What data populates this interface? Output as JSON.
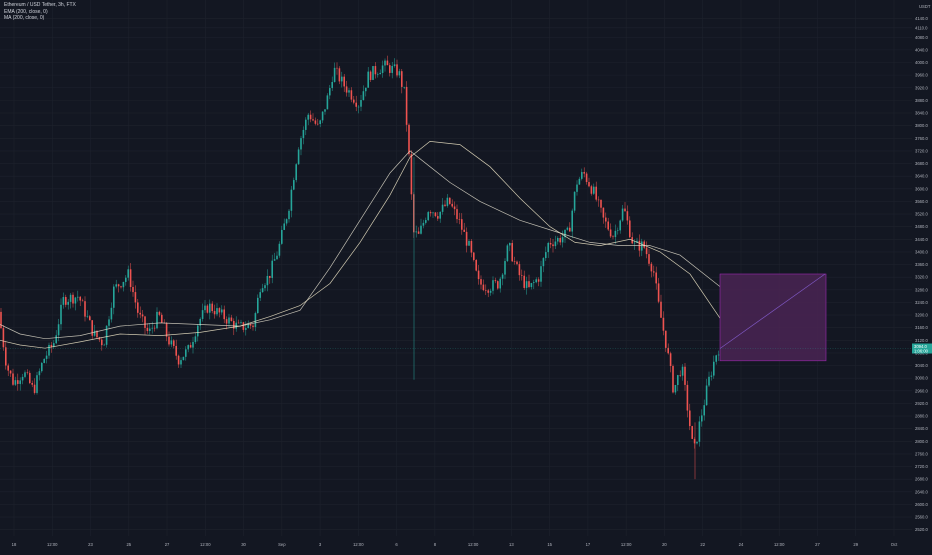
{
  "header": {
    "symbol_line": "Ethereum / USD Tether, 3h, FTX",
    "indicator_1": "EMA (200, close, 0)",
    "indicator_2": "MA (200, close, 0)"
  },
  "axis": {
    "unit": "USDT",
    "y_ticks": [
      "4140.0",
      "4110.0",
      "4080.0",
      "4040.0",
      "4000.0",
      "3960.0",
      "3920.0",
      "3880.0",
      "3840.0",
      "3800.0",
      "3760.0",
      "3720.0",
      "3680.0",
      "3640.0",
      "3600.0",
      "3560.0",
      "3520.0",
      "3480.0",
      "3440.0",
      "3400.0",
      "3360.0",
      "3320.0",
      "3280.0",
      "3240.0",
      "3200.0",
      "3160.0",
      "3120.0",
      "3080.0",
      "3040.0",
      "3000.0",
      "2960.0",
      "2920.0",
      "2880.0",
      "2840.0",
      "2800.0",
      "2760.0",
      "2720.0",
      "2680.0",
      "2640.0",
      "2600.0",
      "2560.0",
      "2520.0"
    ],
    "x_ticks": [
      "18",
      "12:00",
      "23",
      "25",
      "27",
      "12:00",
      "30",
      "Sep",
      "3",
      "12:00",
      "6",
      "8",
      "12:00",
      "13",
      "15",
      "17",
      "12:00",
      "20",
      "22",
      "24",
      "12:00",
      "27",
      "29",
      "Oct"
    ],
    "current_price_label": "3094.0",
    "current_price_sub": "1:06:00"
  },
  "colors": {
    "background": "#131722",
    "grid": "#1e222d",
    "up": "#26a69a",
    "down": "#ef5350",
    "ema": "#e0dccb",
    "ma": "#f2e9c9",
    "projection_fill": "#4a2553",
    "projection_border": "#9c27b0",
    "price_tag": "#26a69a"
  },
  "chart_data": {
    "type": "candlestick",
    "title": "Ethereum / USD Tether, 3h, FTX",
    "y_unit": "USDT",
    "ylim": [
      2500,
      4160
    ],
    "grid": true,
    "series": [
      {
        "name": "EMA (200, close, 0)",
        "points": [
          [
            0,
            3170
          ],
          [
            20,
            3140
          ],
          [
            45,
            3125
          ],
          [
            80,
            3135
          ],
          [
            120,
            3165
          ],
          [
            160,
            3175
          ],
          [
            200,
            3170
          ],
          [
            240,
            3165
          ],
          [
            270,
            3185
          ],
          [
            300,
            3215
          ],
          [
            330,
            3350
          ],
          [
            360,
            3500
          ],
          [
            390,
            3650
          ],
          [
            410,
            3720
          ],
          [
            430,
            3670
          ],
          [
            450,
            3620
          ],
          [
            480,
            3560
          ],
          [
            520,
            3500
          ],
          [
            560,
            3460
          ],
          [
            590,
            3430
          ],
          [
            620,
            3420
          ],
          [
            650,
            3420
          ],
          [
            680,
            3390
          ],
          [
            720,
            3290
          ]
        ]
      },
      {
        "name": "MA (200, close, 0)",
        "points": [
          [
            0,
            3120
          ],
          [
            20,
            3105
          ],
          [
            45,
            3095
          ],
          [
            80,
            3115
          ],
          [
            120,
            3140
          ],
          [
            160,
            3135
          ],
          [
            200,
            3145
          ],
          [
            240,
            3165
          ],
          [
            270,
            3195
          ],
          [
            300,
            3230
          ],
          [
            330,
            3300
          ],
          [
            360,
            3430
          ],
          [
            390,
            3580
          ],
          [
            410,
            3700
          ],
          [
            430,
            3750
          ],
          [
            460,
            3740
          ],
          [
            490,
            3670
          ],
          [
            520,
            3570
          ],
          [
            550,
            3480
          ],
          [
            575,
            3430
          ],
          [
            600,
            3420
          ],
          [
            630,
            3440
          ],
          [
            660,
            3400
          ],
          [
            690,
            3330
          ],
          [
            720,
            3190
          ]
        ]
      },
      {
        "name": "price",
        "points": [
          [
            0,
            3210
          ],
          [
            8,
            3040
          ],
          [
            15,
            2985
          ],
          [
            25,
            3020
          ],
          [
            35,
            2960
          ],
          [
            45,
            3060
          ],
          [
            55,
            3110
          ],
          [
            65,
            3250
          ],
          [
            80,
            3260
          ],
          [
            95,
            3140
          ],
          [
            105,
            3110
          ],
          [
            115,
            3280
          ],
          [
            130,
            3330
          ],
          [
            140,
            3200
          ],
          [
            150,
            3140
          ],
          [
            160,
            3200
          ],
          [
            170,
            3120
          ],
          [
            180,
            3060
          ],
          [
            190,
            3090
          ],
          [
            200,
            3180
          ],
          [
            210,
            3230
          ],
          [
            225,
            3195
          ],
          [
            240,
            3160
          ],
          [
            255,
            3170
          ],
          [
            262,
            3300
          ],
          [
            270,
            3320
          ],
          [
            280,
            3410
          ],
          [
            290,
            3540
          ],
          [
            300,
            3740
          ],
          [
            310,
            3840
          ],
          [
            320,
            3790
          ],
          [
            330,
            3900
          ],
          [
            335,
            3980
          ],
          [
            345,
            3930
          ],
          [
            360,
            3870
          ],
          [
            370,
            3960
          ],
          [
            385,
            3990
          ],
          [
            400,
            3970
          ],
          [
            406,
            3900
          ],
          [
            410,
            3720
          ],
          [
            415,
            3460
          ],
          [
            420,
            3450
          ],
          [
            430,
            3540
          ],
          [
            440,
            3520
          ],
          [
            450,
            3560
          ],
          [
            460,
            3500
          ],
          [
            470,
            3420
          ],
          [
            480,
            3300
          ],
          [
            490,
            3290
          ],
          [
            500,
            3300
          ],
          [
            510,
            3420
          ],
          [
            520,
            3330
          ],
          [
            530,
            3280
          ],
          [
            540,
            3320
          ],
          [
            550,
            3430
          ],
          [
            560,
            3440
          ],
          [
            570,
            3460
          ],
          [
            578,
            3620
          ],
          [
            585,
            3650
          ],
          [
            595,
            3590
          ],
          [
            605,
            3500
          ],
          [
            615,
            3450
          ],
          [
            625,
            3540
          ],
          [
            635,
            3420
          ],
          [
            645,
            3420
          ],
          [
            655,
            3340
          ],
          [
            660,
            3230
          ],
          [
            668,
            3100
          ],
          [
            675,
            2960
          ],
          [
            683,
            3040
          ],
          [
            690,
            2880
          ],
          [
            695,
            2760
          ],
          [
            700,
            2840
          ],
          [
            710,
            2990
          ],
          [
            719,
            3094
          ]
        ]
      },
      {
        "name": "projection",
        "points": [
          [
            720,
            3094
          ],
          [
            825,
            3330
          ]
        ]
      }
    ],
    "projection_box": {
      "x_from": 720,
      "x_to": 826,
      "y_low": 3055,
      "y_high": 3330
    },
    "current_price": 3094.0
  }
}
